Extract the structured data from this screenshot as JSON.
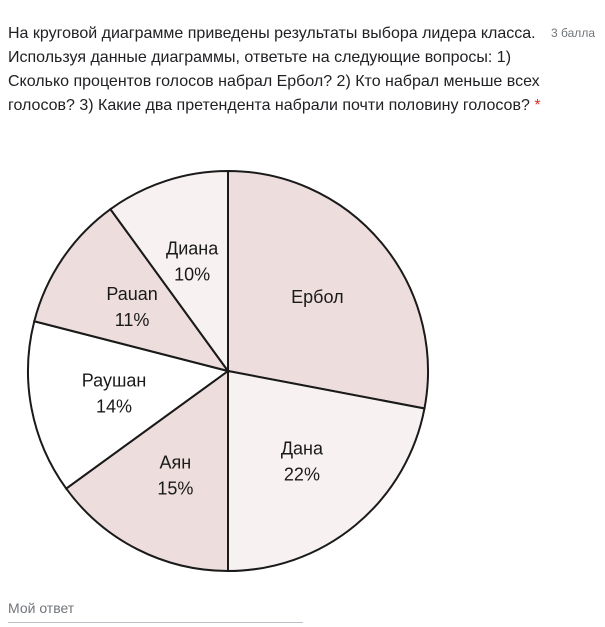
{
  "question": {
    "text": "На круговой диаграмме приведены результаты выбора лидера класса. Используя данные диаграммы, ответьте на следующие вопросы: 1) Сколько процентов голосов набрал Ербол? 2) Кто набрал меньше всех голосов? 3) Какие два претендента набрали почти половину голосов?",
    "required_mark": "*",
    "points": "3 балла"
  },
  "answer": {
    "placeholder": "Мой ответ"
  },
  "chart_data": {
    "type": "pie",
    "start_angle_deg": 0,
    "direction": "clockwise",
    "slices": [
      {
        "label": "Ербол",
        "value": 28,
        "value_label": "",
        "color": "#eddddd"
      },
      {
        "label": "Дана",
        "value": 22,
        "value_label": "22%",
        "color": "#f8f1f1"
      },
      {
        "label": "Аян",
        "value": 15,
        "value_label": "15%",
        "color": "#eddddd"
      },
      {
        "label": "Раушан",
        "value": 14,
        "value_label": "14%",
        "color": "#ffffff"
      },
      {
        "label": "Раuan",
        "value": 11,
        "value_label": "11%",
        "color": "#eddddd"
      },
      {
        "label": "Диана",
        "value": 10,
        "value_label": "10%",
        "color": "#f8f1f1"
      }
    ]
  }
}
